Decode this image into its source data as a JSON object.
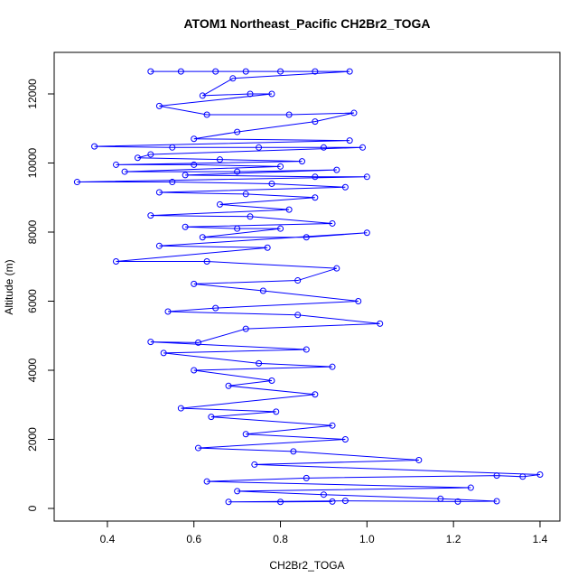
{
  "chart_data": {
    "type": "line",
    "title": "ATOM1 Northeast_Pacific CH2Br2_TOGA",
    "x_label": "CH2Br2_TOGA",
    "y_label": "Altitude (m)",
    "color": "#0000ff",
    "xlim": [
      0.277,
      1.446
    ],
    "ylim": [
      -366,
      13203
    ],
    "xticks": [
      0.4,
      0.6,
      0.8,
      {
        "value": 1,
        "label": "1.0"
      },
      1.2,
      1.4
    ],
    "yticks": [
      0,
      2000,
      4000,
      6000,
      8000,
      10000,
      12000
    ],
    "x": [
      0.5,
      0.57,
      0.65,
      0.72,
      0.8,
      0.88,
      0.96,
      0.69,
      0.62,
      0.73,
      0.78,
      0.52,
      0.63,
      0.82,
      0.97,
      0.88,
      0.7,
      0.6,
      0.96,
      0.37,
      0.55,
      0.75,
      0.9,
      0.99,
      0.5,
      0.47,
      0.66,
      0.85,
      0.42,
      0.6,
      0.8,
      0.44,
      0.7,
      0.93,
      0.58,
      0.88,
      1.0,
      0.33,
      0.55,
      0.78,
      0.95,
      0.52,
      0.72,
      0.88,
      0.66,
      0.82,
      0.5,
      0.73,
      0.92,
      0.58,
      0.7,
      0.8,
      0.62,
      0.86,
      1.0,
      0.52,
      0.77,
      0.42,
      0.63,
      0.93,
      0.84,
      0.6,
      0.76,
      0.98,
      0.65,
      0.54,
      0.84,
      1.03,
      0.72,
      0.61,
      0.5,
      0.86,
      0.53,
      0.75,
      0.92,
      0.6,
      0.78,
      0.68,
      0.88,
      0.57,
      0.79,
      0.64,
      0.92,
      0.72,
      0.95,
      0.61,
      0.83,
      1.12,
      0.74,
      1.4,
      1.36,
      1.3,
      0.86,
      0.63,
      1.24,
      0.7,
      0.9,
      1.17,
      1.3,
      1.21,
      0.95,
      0.68,
      0.8,
      0.92
    ],
    "values": [
      12650,
      12650,
      12650,
      12650,
      12650,
      12650,
      12650,
      12450,
      11950,
      12000,
      12000,
      11650,
      11400,
      11400,
      11450,
      11200,
      10900,
      10700,
      10650,
      10480,
      10450,
      10450,
      10450,
      10450,
      10250,
      10150,
      10100,
      10050,
      9950,
      9950,
      9900,
      9750,
      9750,
      9800,
      9650,
      9600,
      9600,
      9450,
      9450,
      9400,
      9300,
      9150,
      9100,
      9000,
      8800,
      8650,
      8480,
      8450,
      8250,
      8150,
      8100,
      8100,
      7850,
      7850,
      7980,
      7600,
      7550,
      7150,
      7150,
      6950,
      6600,
      6500,
      6300,
      6000,
      5800,
      5700,
      5600,
      5350,
      5200,
      4800,
      4820,
      4600,
      4500,
      4200,
      4100,
      4000,
      3700,
      3550,
      3300,
      2900,
      2800,
      2650,
      2400,
      2150,
      2000,
      1750,
      1650,
      1400,
      1270,
      980,
      920,
      950,
      880,
      780,
      600,
      500,
      400,
      280,
      210,
      200,
      220,
      190,
      190,
      200
    ]
  }
}
